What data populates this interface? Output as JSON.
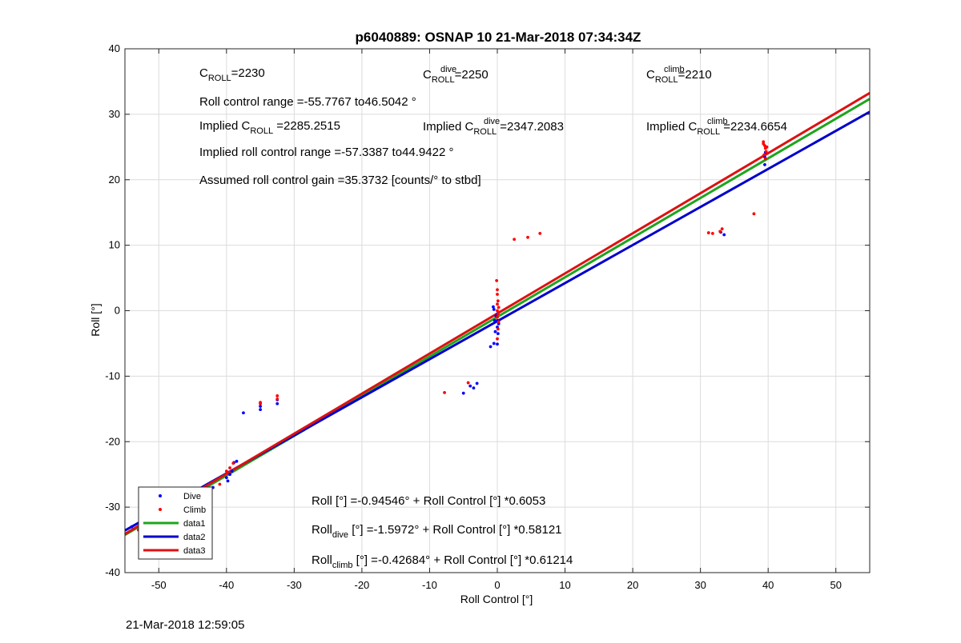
{
  "chart_data": {
    "type": "scatter",
    "title": "p6040889: OSNAP 10 21-Mar-2018 07:34:34Z",
    "xlabel": "Roll Control [°]",
    "ylabel": "Roll [°]",
    "xlim": [
      -55,
      55
    ],
    "ylim": [
      -40,
      40
    ],
    "xticks": [
      -50,
      -40,
      -30,
      -20,
      -10,
      0,
      10,
      20,
      30,
      40,
      50
    ],
    "yticks": [
      -40,
      -30,
      -20,
      -10,
      0,
      10,
      20,
      30,
      40
    ],
    "grid": true,
    "legend_position": "bottom-left",
    "series": [
      {
        "name": "Dive",
        "kind": "points",
        "color": "#0000ff",
        "points": [
          [
            -54,
            -33
          ],
          [
            -52,
            -32
          ],
          [
            -50,
            -31
          ],
          [
            -48,
            -30
          ],
          [
            -46,
            -29
          ],
          [
            -44,
            -28
          ],
          [
            -42,
            -27
          ],
          [
            -40,
            -25.5
          ],
          [
            -39.8,
            -26
          ],
          [
            -39.5,
            -25
          ],
          [
            -39.2,
            -24.5
          ],
          [
            -38.9,
            -23.2
          ],
          [
            -38.5,
            -23.0
          ],
          [
            -37.5,
            -15.6
          ],
          [
            -35,
            -15.1
          ],
          [
            -35,
            -14.6
          ],
          [
            -32.5,
            -14.2
          ],
          [
            -32.5,
            -13.6
          ],
          [
            -5.0,
            -12.6
          ],
          [
            -3.5,
            -11.8
          ],
          [
            -3.0,
            -11.1
          ],
          [
            -4.0,
            -11.5
          ],
          [
            -1.0,
            -5.5
          ],
          [
            -0.5,
            -5.0
          ],
          [
            -0.3,
            -3.2
          ],
          [
            -0.4,
            -1.5
          ],
          [
            -0.2,
            -0.8
          ],
          [
            -0.5,
            0.2
          ],
          [
            -0.6,
            0.6
          ],
          [
            0,
            -2.5
          ],
          [
            0,
            -1.5
          ],
          [
            0,
            -0.5
          ],
          [
            0.1,
            -3.5
          ],
          [
            0,
            -5.1
          ],
          [
            0.2,
            -2.0
          ],
          [
            39.5,
            22.3
          ],
          [
            39.5,
            23.5
          ],
          [
            39.6,
            24.2
          ],
          [
            33.5,
            11.6
          ],
          [
            33,
            12.0
          ]
        ]
      },
      {
        "name": "Climb",
        "kind": "points",
        "color": "#ff0000",
        "points": [
          [
            -53,
            -33.5
          ],
          [
            -49,
            -31.5
          ],
          [
            -45,
            -29
          ],
          [
            -41,
            -26.5
          ],
          [
            -40,
            -24.5
          ],
          [
            -39.5,
            -24
          ],
          [
            -39,
            -23.3
          ],
          [
            -35,
            -14.2
          ],
          [
            -35,
            -14.0
          ],
          [
            -32.5,
            -13.5
          ],
          [
            -32.5,
            -13.0
          ],
          [
            -7.8,
            -12.5
          ],
          [
            -4.3,
            -11.0
          ],
          [
            -0.1,
            4.6
          ],
          [
            0,
            3.2
          ],
          [
            0,
            2.5
          ],
          [
            0.1,
            1.5
          ],
          [
            0,
            1.0
          ],
          [
            0.2,
            0.5
          ],
          [
            0,
            0
          ],
          [
            0.1,
            -0.5
          ],
          [
            0,
            -1.0
          ],
          [
            0.2,
            -1.7
          ],
          [
            0.1,
            -2.8
          ],
          [
            0,
            -4.3
          ],
          [
            2.5,
            10.9
          ],
          [
            4.5,
            11.2
          ],
          [
            6.3,
            11.8
          ],
          [
            31.2,
            11.9
          ],
          [
            31.8,
            11.8
          ],
          [
            32.9,
            12.1
          ],
          [
            33.2,
            12.5
          ],
          [
            37.9,
            14.8
          ],
          [
            39.3,
            25.8
          ],
          [
            39.5,
            25.2
          ],
          [
            39.6,
            24.8
          ],
          [
            39.7,
            24.3
          ],
          [
            39.4,
            23.8
          ],
          [
            39.6,
            23.2
          ],
          [
            39.3,
            25.5
          ],
          [
            39.8,
            25.0
          ]
        ]
      },
      {
        "name": "data1",
        "kind": "line",
        "color": "#1ea51e",
        "intercept": -0.94546,
        "slope": 0.6053
      },
      {
        "name": "data2",
        "kind": "line",
        "color": "#0000cc",
        "intercept": -1.5972,
        "slope": 0.58121
      },
      {
        "name": "data3",
        "kind": "line",
        "color": "#dd1111",
        "intercept": -0.42684,
        "slope": 0.61214
      }
    ],
    "annotations": {
      "c_roll": {
        "main": "C",
        "sub": "ROLL",
        "sup": "",
        "value": "=2230"
      },
      "c_roll_dive": {
        "main": "C",
        "sub": "ROLL",
        "sup": "dive",
        "value": "=2250"
      },
      "c_roll_climb": {
        "main": "C",
        "sub": "ROLL",
        "sup": "climb",
        "value": "=2210"
      },
      "range": "Roll control range =-55.7767 to46.5042 °",
      "implied_c_roll": {
        "prefix": "Implied C",
        "sub": "ROLL",
        "sup": "",
        "value": " =2285.2515"
      },
      "implied_c_roll_dive": {
        "prefix": "Implied C",
        "sub": "ROLL",
        "sup": "dive",
        "value": " =2347.2083"
      },
      "implied_c_roll_climb": {
        "prefix": "Implied C",
        "sub": "ROLL",
        "sup": "climb",
        "value": " =2234.6654"
      },
      "implied_range": "Implied roll control range =-57.3387 to44.9422 °",
      "gain": "Assumed roll control gain =35.3732 [counts/° to stbd]",
      "fit_all": {
        "prefix": "Roll",
        "sub": "",
        "rest": " [°] =-0.94546° + Roll Control [°] *0.6053"
      },
      "fit_dive": {
        "prefix": "Roll",
        "sub": "dive",
        "rest": " [°] =-1.5972° + Roll Control [°] *0.58121"
      },
      "fit_climb": {
        "prefix": "Roll",
        "sub": "climb",
        "rest": " [°] =-0.42684° + Roll Control [°] *0.61214"
      }
    }
  },
  "footer": {
    "timestamp": "21-Mar-2018 12:59:05"
  }
}
